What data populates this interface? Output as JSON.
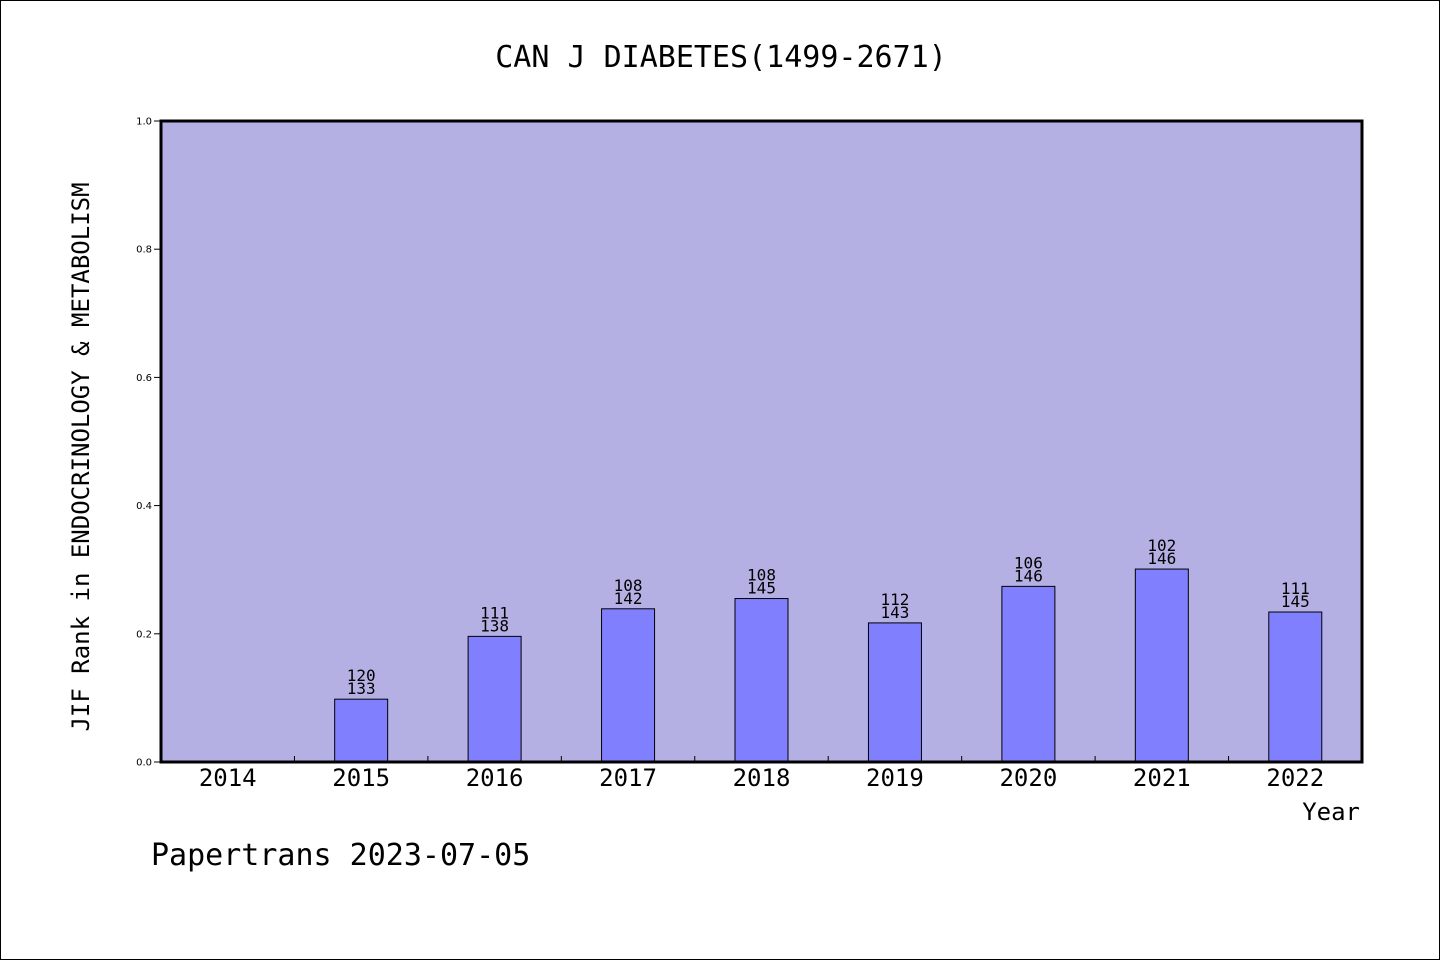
{
  "chart_data": {
    "type": "bar",
    "title": "CAN J DIABETES(1499-2671)",
    "xlabel": "Year",
    "ylabel": "JIF Rank in ENDOCRINOLOGY & METABOLISM",
    "ylim": [
      0.0,
      1.0
    ],
    "yticks": [
      "0.0",
      "0.2",
      "0.4",
      "0.6",
      "0.8",
      "1.0"
    ],
    "grid": false,
    "colors": {
      "plot_background": "#b5b0e3",
      "bar_fill": "#8080ff",
      "bar_stroke": "#000000"
    },
    "categories": [
      "2014",
      "2015",
      "2016",
      "2017",
      "2018",
      "2019",
      "2020",
      "2021",
      "2022"
    ],
    "values": [
      null,
      0.098,
      0.196,
      0.239,
      0.255,
      0.217,
      0.274,
      0.301,
      0.234
    ],
    "labels": [
      null,
      [
        "120",
        "133"
      ],
      [
        "111",
        "138"
      ],
      [
        "108",
        "142"
      ],
      [
        "108",
        "145"
      ],
      [
        "112",
        "143"
      ],
      [
        "106",
        "146"
      ],
      [
        "102",
        "146"
      ],
      [
        "111",
        "145"
      ]
    ]
  },
  "footer": "Papertrans 2023-07-05"
}
